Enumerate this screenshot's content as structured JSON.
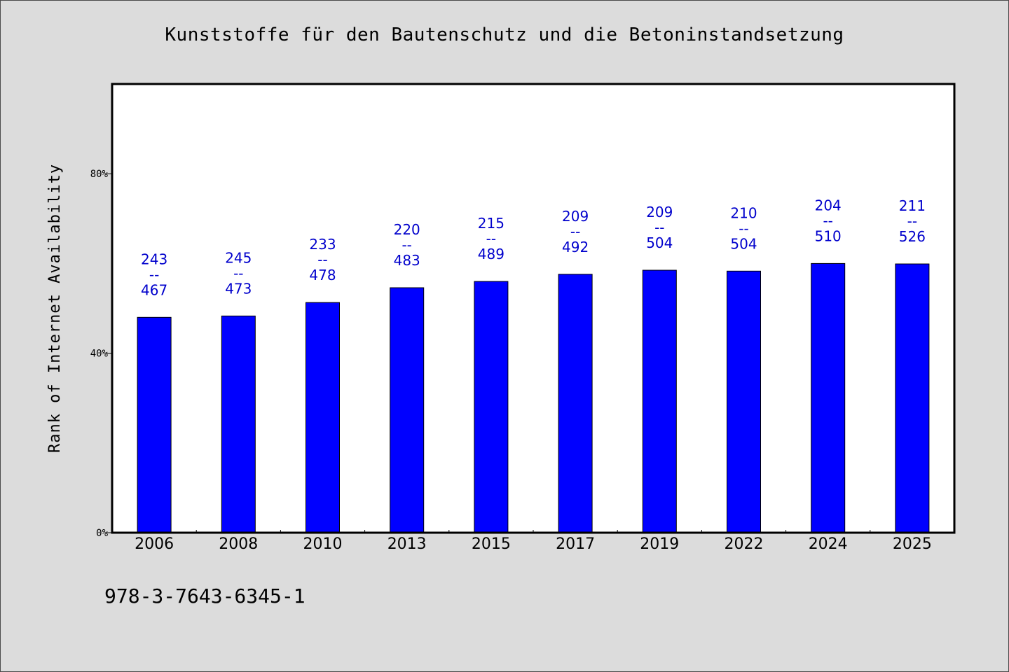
{
  "chart_data": {
    "type": "bar",
    "title": "Kunststoffe für den Bautenschutz und die Betoninstandsetzung",
    "ylabel": "Rank of Internet Availability",
    "xlabel": "",
    "ylim": [
      0,
      100
    ],
    "yticks": [
      {
        "value": 0,
        "label": "0%"
      },
      {
        "value": 40,
        "label": "40%"
      },
      {
        "value": 80,
        "label": "80%"
      }
    ],
    "categories": [
      "2006",
      "2008",
      "2010",
      "2013",
      "2015",
      "2017",
      "2019",
      "2022",
      "2024",
      "2025"
    ],
    "values": [
      48.0,
      48.3,
      51.3,
      54.6,
      56.0,
      57.6,
      58.5,
      58.3,
      60.0,
      59.9
    ],
    "data_labels": [
      [
        "243",
        "--",
        "467"
      ],
      [
        "245",
        "--",
        "473"
      ],
      [
        "233",
        "--",
        "478"
      ],
      [
        "220",
        "--",
        "483"
      ],
      [
        "215",
        "--",
        "489"
      ],
      [
        "209",
        "--",
        "492"
      ],
      [
        "209",
        "--",
        "504"
      ],
      [
        "210",
        "--",
        "504"
      ],
      [
        "204",
        "--",
        "510"
      ],
      [
        "211",
        "--",
        "526"
      ]
    ],
    "grid": false,
    "colors": {
      "bar": "#0000ff",
      "data_label": "#0000cc",
      "plot_background": "#ffffff",
      "page_background": "#dcdcdc"
    }
  },
  "footer": {
    "isbn": "978-3-7643-6345-1"
  }
}
